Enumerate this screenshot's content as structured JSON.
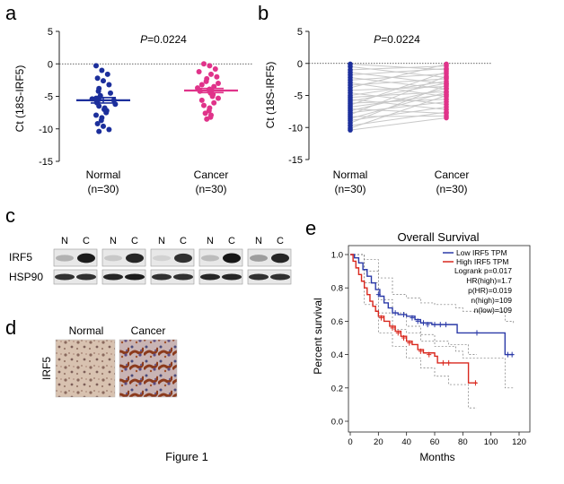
{
  "figure_caption": "Figure 1",
  "panel_letters": {
    "a": "a",
    "b": "b",
    "c": "c",
    "d": "d",
    "e": "e"
  },
  "colors": {
    "normal": "#1c2f9c",
    "cancer": "#e0338a",
    "low_line": "#2b3aa8",
    "high_line": "#d9281e",
    "pair_line": "#c8c8c8"
  },
  "chart_data": [
    {
      "panel": "a",
      "type": "scatter",
      "p_label": "P=0.0224",
      "p_prefix": "P",
      "p_value": "=0.0224",
      "ylabel": "Ct (18S-IRF5)",
      "ylim": [
        -15,
        5
      ],
      "yticks": [
        "5",
        "0",
        "-5",
        "-10",
        "-15"
      ],
      "categories": [
        {
          "name": "Normal",
          "n": "(n=30)"
        },
        {
          "name": "Cancer",
          "n": "(n=30)"
        }
      ],
      "series": [
        {
          "category": "Normal",
          "mean": -5.6,
          "sem": 0.42,
          "values": [
            -0.3,
            -1.0,
            -1.6,
            -2.2,
            -2.6,
            -3.2,
            -3.8,
            -4.2,
            -4.5,
            -4.9,
            -5.1,
            -5.3,
            -5.5,
            -5.6,
            -5.8,
            -6.0,
            -6.2,
            -6.5,
            -6.8,
            -7.0,
            -7.2,
            -7.5,
            -7.9,
            -8.3,
            -8.7,
            -9.2,
            -9.6,
            -10.1,
            -10.4,
            -5.4
          ]
        },
        {
          "category": "Cancer",
          "mean": -4.1,
          "sem": 0.32,
          "values": [
            0.0,
            -0.3,
            -0.8,
            -1.2,
            -1.6,
            -2.0,
            -2.3,
            -2.7,
            -3.0,
            -3.2,
            -3.5,
            -3.7,
            -3.9,
            -4.0,
            -4.1,
            -4.3,
            -4.5,
            -4.7,
            -5.0,
            -5.3,
            -5.6,
            -6.0,
            -6.4,
            -6.8,
            -7.2,
            -7.6,
            -7.9,
            -8.2,
            -8.5,
            -4.2
          ]
        }
      ]
    },
    {
      "panel": "b",
      "type": "line",
      "p_prefix": "P",
      "p_value": "=0.0224",
      "ylabel": "Ct (18S-IRF5)",
      "ylim": [
        -15,
        5
      ],
      "yticks": [
        "5",
        "0",
        "-5",
        "-10",
        "-15"
      ],
      "categories": [
        {
          "name": "Normal",
          "n": "(n=30)"
        },
        {
          "name": "Cancer",
          "n": "(n=30)"
        }
      ],
      "pairs": [
        [
          -0.1,
          -1.0
        ],
        [
          -0.5,
          -2.2
        ],
        [
          -1.0,
          -0.4
        ],
        [
          -1.4,
          -3.2
        ],
        [
          -1.8,
          -0.8
        ],
        [
          -2.2,
          -4.0
        ],
        [
          -2.6,
          -1.6
        ],
        [
          -3.0,
          -5.2
        ],
        [
          -3.4,
          -2.4
        ],
        [
          -3.8,
          -0.1
        ],
        [
          -4.2,
          -3.6
        ],
        [
          -4.6,
          -6.4
        ],
        [
          -5.0,
          -2.8
        ],
        [
          -5.3,
          -4.4
        ],
        [
          -5.6,
          -7.2
        ],
        [
          -5.9,
          -3.1
        ],
        [
          -6.2,
          -5.6
        ],
        [
          -6.5,
          -1.3
        ],
        [
          -6.8,
          -4.8
        ],
        [
          -7.1,
          -7.8
        ],
        [
          -7.4,
          -3.9
        ],
        [
          -7.7,
          -6.0
        ],
        [
          -8.0,
          -2.0
        ],
        [
          -8.3,
          -8.2
        ],
        [
          -8.6,
          -4.5
        ],
        [
          -8.9,
          -6.8
        ],
        [
          -9.3,
          -3.4
        ],
        [
          -9.7,
          -7.6
        ],
        [
          -10.1,
          -5.0
        ],
        [
          -10.4,
          -8.5
        ]
      ]
    },
    {
      "panel": "e",
      "type": "line",
      "title": "Overall Survival",
      "xlabel": "Months",
      "ylabel": "Percent survival",
      "xlim": [
        0,
        120
      ],
      "ylim": [
        0,
        1.0
      ],
      "xticks": [
        "0",
        "20",
        "40",
        "60",
        "80",
        "100",
        "120"
      ],
      "yticks": [
        "0.0",
        "0.2",
        "0.4",
        "0.6",
        "0.8",
        "1.0"
      ],
      "legend": {
        "placement": "top-right",
        "entries": [
          "Low IRF5 TPM",
          "High IRF5 TPM"
        ],
        "stats": [
          "Logrank p=0.017",
          "HR(high)=1.7",
          "p(HR)=0.019",
          "n(high)=109",
          "n(low)=109"
        ]
      },
      "series": [
        {
          "name": "Low IRF5 TPM",
          "steps": [
            [
              0,
              1.0
            ],
            [
              3,
              0.98
            ],
            [
              6,
              0.95
            ],
            [
              9,
              0.91
            ],
            [
              12,
              0.87
            ],
            [
              15,
              0.83
            ],
            [
              18,
              0.79
            ],
            [
              21,
              0.75
            ],
            [
              24,
              0.71
            ],
            [
              27,
              0.68
            ],
            [
              30,
              0.65
            ],
            [
              34,
              0.64
            ],
            [
              40,
              0.63
            ],
            [
              46,
              0.61
            ],
            [
              50,
              0.59
            ],
            [
              58,
              0.58
            ],
            [
              70,
              0.58
            ],
            [
              76,
              0.53
            ],
            [
              100,
              0.53
            ],
            [
              110,
              0.4
            ],
            [
              116,
              0.4
            ]
          ],
          "censors": [
            [
              20,
              0.76
            ],
            [
              32,
              0.65
            ],
            [
              38,
              0.64
            ],
            [
              44,
              0.62
            ],
            [
              48,
              0.6
            ],
            [
              52,
              0.59
            ],
            [
              55,
              0.58
            ],
            [
              60,
              0.58
            ],
            [
              64,
              0.58
            ],
            [
              68,
              0.58
            ],
            [
              90,
              0.53
            ],
            [
              112,
              0.4
            ],
            [
              115,
              0.4
            ]
          ],
          "ci_upper": [
            [
              0,
              1.0
            ],
            [
              10,
              0.97
            ],
            [
              20,
              0.86
            ],
            [
              30,
              0.76
            ],
            [
              40,
              0.74
            ],
            [
              50,
              0.71
            ],
            [
              60,
              0.7
            ],
            [
              75,
              0.68
            ],
            [
              80,
              0.66
            ],
            [
              100,
              0.66
            ],
            [
              110,
              0.6
            ],
            [
              116,
              0.58
            ]
          ],
          "ci_lower": [
            [
              0,
              1.0
            ],
            [
              10,
              0.83
            ],
            [
              20,
              0.65
            ],
            [
              30,
              0.55
            ],
            [
              40,
              0.53
            ],
            [
              50,
              0.48
            ],
            [
              60,
              0.45
            ],
            [
              75,
              0.42
            ],
            [
              80,
              0.38
            ],
            [
              100,
              0.38
            ],
            [
              110,
              0.2
            ],
            [
              116,
              0.2
            ]
          ]
        },
        {
          "name": "High IRF5 TPM",
          "steps": [
            [
              0,
              1.0
            ],
            [
              2,
              0.96
            ],
            [
              4,
              0.92
            ],
            [
              6,
              0.88
            ],
            [
              8,
              0.84
            ],
            [
              10,
              0.8
            ],
            [
              12,
              0.76
            ],
            [
              14,
              0.72
            ],
            [
              16,
              0.69
            ],
            [
              18,
              0.66
            ],
            [
              20,
              0.63
            ],
            [
              24,
              0.6
            ],
            [
              28,
              0.57
            ],
            [
              32,
              0.54
            ],
            [
              36,
              0.51
            ],
            [
              40,
              0.48
            ],
            [
              44,
              0.46
            ],
            [
              48,
              0.43
            ],
            [
              52,
              0.41
            ],
            [
              60,
              0.39
            ],
            [
              62,
              0.35
            ],
            [
              80,
              0.35
            ],
            [
              84,
              0.23
            ],
            [
              90,
              0.23
            ]
          ],
          "censors": [
            [
              22,
              0.62
            ],
            [
              30,
              0.56
            ],
            [
              34,
              0.53
            ],
            [
              38,
              0.5
            ],
            [
              42,
              0.47
            ],
            [
              50,
              0.42
            ],
            [
              56,
              0.4
            ],
            [
              66,
              0.35
            ],
            [
              70,
              0.35
            ],
            [
              89,
              0.23
            ]
          ],
          "ci_upper": [
            [
              0,
              1.0
            ],
            [
              10,
              0.9
            ],
            [
              20,
              0.73
            ],
            [
              30,
              0.65
            ],
            [
              40,
              0.57
            ],
            [
              50,
              0.52
            ],
            [
              60,
              0.48
            ],
            [
              70,
              0.46
            ],
            [
              84,
              0.4
            ],
            [
              90,
              0.4
            ]
          ],
          "ci_lower": [
            [
              0,
              1.0
            ],
            [
              10,
              0.7
            ],
            [
              20,
              0.53
            ],
            [
              30,
              0.45
            ],
            [
              40,
              0.38
            ],
            [
              50,
              0.32
            ],
            [
              60,
              0.27
            ],
            [
              70,
              0.22
            ],
            [
              84,
              0.08
            ],
            [
              90,
              0.08
            ]
          ]
        }
      ]
    }
  ],
  "western_blot": {
    "lane_labels": [
      "N",
      "C"
    ],
    "row_labels": [
      "IRF5",
      "HSP90"
    ],
    "pairs": [
      {
        "irf5": [
          0.25,
          0.95
        ],
        "hsp90": [
          0.85,
          0.85
        ]
      },
      {
        "irf5": [
          0.15,
          0.9
        ],
        "hsp90": [
          0.9,
          0.95
        ]
      },
      {
        "irf5": [
          0.1,
          0.85
        ],
        "hsp90": [
          0.85,
          0.85
        ]
      },
      {
        "irf5": [
          0.2,
          0.98
        ],
        "hsp90": [
          0.9,
          0.9
        ]
      },
      {
        "irf5": [
          0.35,
          0.9
        ],
        "hsp90": [
          0.85,
          0.85
        ]
      }
    ]
  },
  "ihc": {
    "row_label": "IRF5",
    "tissues": [
      "Normal",
      "Cancer"
    ]
  }
}
